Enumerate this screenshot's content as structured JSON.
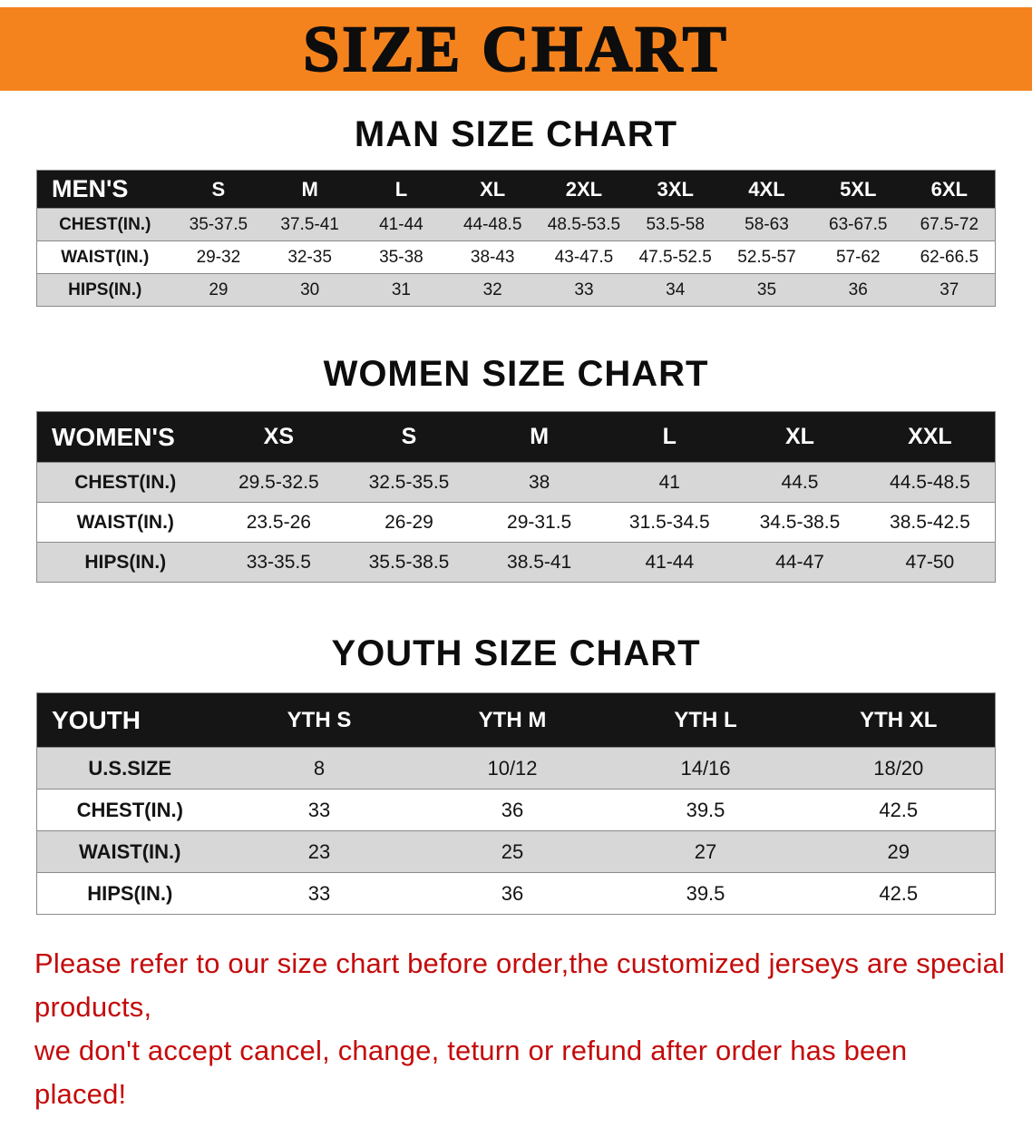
{
  "banner": {
    "title": "SIZE CHART"
  },
  "colors": {
    "banner_bg": "#F5831D",
    "header_bar": "#151515",
    "row_shade": "#d7d7d7",
    "footer_text": "#c40b0b"
  },
  "sections": [
    {
      "id": "men",
      "title": "MAN SIZE CHART",
      "header_label": "MEN'S",
      "columns": [
        "S",
        "M",
        "L",
        "XL",
        "2XL",
        "3XL",
        "4XL",
        "5XL",
        "6XL"
      ],
      "rows": [
        {
          "label": "CHEST(IN.)",
          "values": [
            "35-37.5",
            "37.5-41",
            "41-44",
            "44-48.5",
            "48.5-53.5",
            "53.5-58",
            "58-63",
            "63-67.5",
            "67.5-72"
          ]
        },
        {
          "label": "WAIST(IN.)",
          "values": [
            "29-32",
            "32-35",
            "35-38",
            "38-43",
            "43-47.5",
            "47.5-52.5",
            "52.5-57",
            "57-62",
            "62-66.5"
          ]
        },
        {
          "label": "HIPS(IN.)",
          "values": [
            "29",
            "30",
            "31",
            "32",
            "33",
            "34",
            "35",
            "36",
            "37"
          ]
        }
      ]
    },
    {
      "id": "women",
      "title": "WOMEN SIZE CHART",
      "header_label": "WOMEN'S",
      "columns": [
        "XS",
        "S",
        "M",
        "L",
        "XL",
        "XXL"
      ],
      "rows": [
        {
          "label": "CHEST(IN.)",
          "values": [
            "29.5-32.5",
            "32.5-35.5",
            "38",
            "41",
            "44.5",
            "44.5-48.5"
          ]
        },
        {
          "label": "WAIST(IN.)",
          "values": [
            "23.5-26",
            "26-29",
            "29-31.5",
            "31.5-34.5",
            "34.5-38.5",
            "38.5-42.5"
          ]
        },
        {
          "label": "HIPS(IN.)",
          "values": [
            "33-35.5",
            "35.5-38.5",
            "38.5-41",
            "41-44",
            "44-47",
            "47-50"
          ]
        }
      ]
    },
    {
      "id": "youth",
      "title": "YOUTH SIZE CHART",
      "header_label": "YOUTH",
      "columns": [
        "YTH S",
        "YTH M",
        "YTH L",
        "YTH XL"
      ],
      "rows": [
        {
          "label": "U.S.SIZE",
          "values": [
            "8",
            "10/12",
            "14/16",
            "18/20"
          ]
        },
        {
          "label": "CHEST(IN.)",
          "values": [
            "33",
            "36",
            "39.5",
            "42.5"
          ]
        },
        {
          "label": "WAIST(IN.)",
          "values": [
            "23",
            "25",
            "27",
            "29"
          ]
        },
        {
          "label": "HIPS(IN.)",
          "values": [
            "33",
            "36",
            "39.5",
            "42.5"
          ]
        }
      ]
    }
  ],
  "footer": {
    "line1": "Please refer to our size chart before order,the customized jerseys are special products,",
    "line2": "we don't accept cancel, change, teturn or refund after order has been placed!"
  }
}
